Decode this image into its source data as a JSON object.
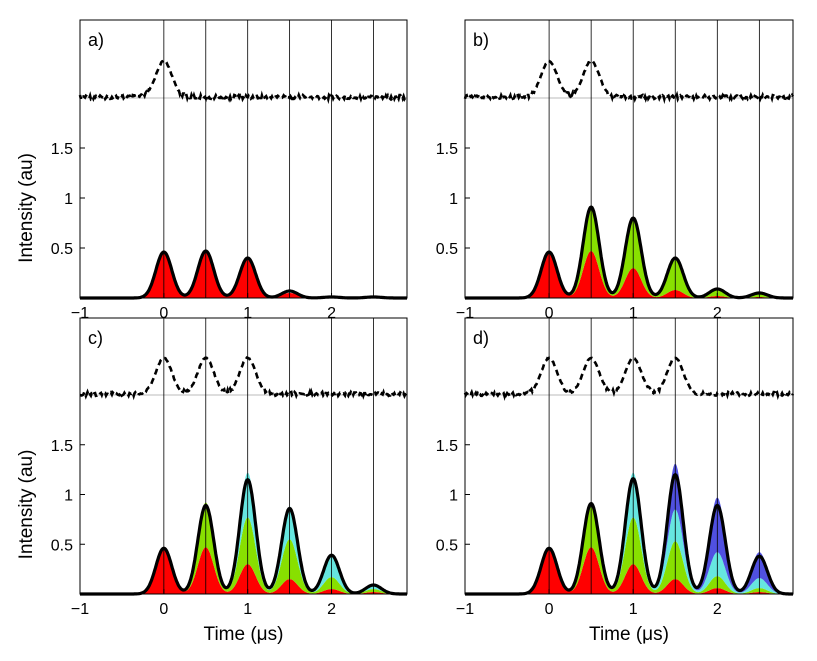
{
  "chart_data": [
    {
      "type": "area",
      "panel_label": "a)",
      "xlim": [
        -1,
        2.9
      ],
      "ylim": [
        0,
        2.1
      ],
      "xticks": [
        "−1",
        "0",
        "1",
        "2"
      ],
      "xtick_values": [
        -1,
        0,
        1,
        2
      ],
      "yticks": [
        "0.5",
        "1",
        "1.5"
      ],
      "ytick_values": [
        0.5,
        1,
        1.5
      ],
      "vertical_gridlines_x": [
        0,
        0.5,
        1,
        1.5,
        2,
        2.5
      ],
      "ylabel": "Intensity (au)",
      "xlabel": "",
      "inset_dashed_pulses_x": [
        0
      ],
      "series": [
        {
          "color": "#ff0000",
          "x": [
            0,
            0.5,
            1,
            1.5,
            2,
            2.5
          ],
          "values": [
            0.46,
            0.47,
            0.4,
            0.05,
            0.0,
            0.0
          ]
        }
      ],
      "total": {
        "color": "#000000",
        "x": [
          0,
          0.5,
          1,
          1.5,
          2,
          2.5
        ],
        "values": [
          0.46,
          0.47,
          0.4,
          0.07,
          0.01,
          0.01
        ]
      }
    },
    {
      "type": "area",
      "panel_label": "b)",
      "xlim": [
        -1,
        2.9
      ],
      "ylim": [
        0,
        2.1
      ],
      "xticks": [
        "−1",
        "0",
        "1",
        "2"
      ],
      "xtick_values": [
        -1,
        0,
        1,
        2
      ],
      "yticks": [
        "0.5",
        "1",
        "1.5"
      ],
      "ytick_values": [
        0.5,
        1,
        1.5
      ],
      "vertical_gridlines_x": [
        0,
        0.5,
        1,
        1.5,
        2,
        2.5
      ],
      "ylabel": "",
      "xlabel": "",
      "inset_dashed_pulses_x": [
        0,
        0.5
      ],
      "series": [
        {
          "color": "#ff0000",
          "x": [
            0,
            0.5,
            1,
            1.5,
            2,
            2.5
          ],
          "values": [
            0.46,
            0.47,
            0.3,
            0.08,
            0.02,
            0.01
          ]
        },
        {
          "color": "#88e000",
          "x": [
            0,
            0.5,
            1,
            1.5,
            2,
            2.5
          ],
          "values": [
            0.0,
            0.43,
            0.5,
            0.3,
            0.06,
            0.03
          ]
        }
      ],
      "total": {
        "color": "#000000",
        "x": [
          0,
          0.5,
          1,
          1.5,
          2,
          2.5
        ],
        "values": [
          0.46,
          0.91,
          0.8,
          0.4,
          0.09,
          0.05
        ]
      }
    },
    {
      "type": "area",
      "panel_label": "c)",
      "xlim": [
        -1,
        2.9
      ],
      "ylim": [
        0,
        2.1
      ],
      "xticks": [
        "−1",
        "0",
        "1",
        "2"
      ],
      "xtick_values": [
        -1,
        0,
        1,
        2
      ],
      "yticks": [
        "0.5",
        "1",
        "1.5"
      ],
      "ytick_values": [
        0.5,
        1,
        1.5
      ],
      "vertical_gridlines_x": [
        0,
        0.5,
        1,
        1.5,
        2,
        2.5
      ],
      "ylabel": "Intensity (au)",
      "xlabel": "Time (μs)",
      "inset_dashed_pulses_x": [
        0,
        0.5,
        1
      ],
      "series": [
        {
          "color": "#ff0000",
          "x": [
            0,
            0.5,
            1,
            1.5,
            2,
            2.5
          ],
          "values": [
            0.46,
            0.47,
            0.3,
            0.15,
            0.05,
            0.02
          ]
        },
        {
          "color": "#88e000",
          "x": [
            0,
            0.5,
            1,
            1.5,
            2,
            2.5
          ],
          "values": [
            0.0,
            0.45,
            0.47,
            0.4,
            0.12,
            0.03
          ]
        },
        {
          "color": "#66e6e0",
          "x": [
            0,
            0.5,
            1,
            1.5,
            2,
            2.5
          ],
          "values": [
            0.0,
            0.0,
            0.45,
            0.33,
            0.23,
            0.05
          ]
        }
      ],
      "total": {
        "color": "#000000",
        "x": [
          0,
          0.5,
          1,
          1.5,
          2,
          2.5
        ],
        "values": [
          0.46,
          0.89,
          1.15,
          0.86,
          0.39,
          0.09
        ]
      }
    },
    {
      "type": "area",
      "panel_label": "d)",
      "xlim": [
        -1,
        2.9
      ],
      "ylim": [
        0,
        2.1
      ],
      "xticks": [
        "−1",
        "0",
        "1",
        "2"
      ],
      "xtick_values": [
        -1,
        0,
        1,
        2
      ],
      "yticks": [
        "0.5",
        "1",
        "1.5"
      ],
      "ytick_values": [
        0.5,
        1,
        1.5
      ],
      "vertical_gridlines_x": [
        0,
        0.5,
        1,
        1.5,
        2,
        2.5
      ],
      "ylabel": "",
      "xlabel": "Time (μs)",
      "inset_dashed_pulses_x": [
        0,
        0.5,
        1,
        1.5
      ],
      "series": [
        {
          "color": "#ff0000",
          "x": [
            0,
            0.5,
            1,
            1.5,
            2,
            2.5
          ],
          "values": [
            0.46,
            0.47,
            0.3,
            0.15,
            0.06,
            0.02
          ]
        },
        {
          "color": "#88e000",
          "x": [
            0,
            0.5,
            1,
            1.5,
            2,
            2.5
          ],
          "values": [
            0.0,
            0.45,
            0.47,
            0.38,
            0.12,
            0.04
          ]
        },
        {
          "color": "#66e6e0",
          "x": [
            0,
            0.5,
            1,
            1.5,
            2,
            2.5
          ],
          "values": [
            0.0,
            0.0,
            0.45,
            0.32,
            0.24,
            0.1
          ]
        },
        {
          "color": "#5050e0",
          "x": [
            0,
            0.5,
            1,
            1.5,
            2,
            2.5
          ],
          "values": [
            0.0,
            0.0,
            0.0,
            0.46,
            0.55,
            0.26
          ]
        }
      ],
      "total": {
        "color": "#000000",
        "x": [
          0,
          0.5,
          1,
          1.5,
          2,
          2.5
        ],
        "values": [
          0.46,
          0.91,
          1.16,
          1.2,
          0.89,
          0.38
        ]
      }
    }
  ]
}
